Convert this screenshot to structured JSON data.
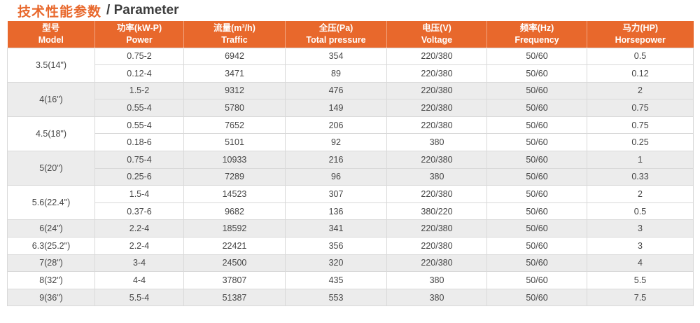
{
  "title": {
    "zh": "技术性能参数",
    "en": "/ Parameter"
  },
  "colors": {
    "accent": "#e8682c",
    "header_text": "#ffffff",
    "row_alt_bg": "#ececec",
    "grid_border": "#d9d9d9",
    "body_text": "#454545",
    "title_en_text": "#3d3d3d"
  },
  "table": {
    "columns": [
      {
        "zh": "型号",
        "en": "Model"
      },
      {
        "zh": "功率(kW-P)",
        "en": "Power"
      },
      {
        "zh": "流量(m³/h)",
        "en": "Traffic"
      },
      {
        "zh": "全压(Pa)",
        "en": "Total pressure"
      },
      {
        "zh": "电压(V)",
        "en": "Voltage"
      },
      {
        "zh": "频率(Hz)",
        "en": "Frequency"
      },
      {
        "zh": "马力(HP)",
        "en": "Horsepower"
      }
    ],
    "groups": [
      {
        "model": "3.5(14\")",
        "rows": [
          [
            "0.75-2",
            "6942",
            "354",
            "220/380",
            "50/60",
            "0.5"
          ],
          [
            "0.12-4",
            "3471",
            "89",
            "220/380",
            "50/60",
            "0.12"
          ]
        ]
      },
      {
        "model": "4(16\")",
        "rows": [
          [
            "1.5-2",
            "9312",
            "476",
            "220/380",
            "50/60",
            "2"
          ],
          [
            "0.55-4",
            "5780",
            "149",
            "220/380",
            "50/60",
            "0.75"
          ]
        ]
      },
      {
        "model": "4.5(18\")",
        "rows": [
          [
            "0.55-4",
            "7652",
            "206",
            "220/380",
            "50/60",
            "0.75"
          ],
          [
            "0.18-6",
            "5101",
            "92",
            "380",
            "50/60",
            "0.25"
          ]
        ]
      },
      {
        "model": "5(20\")",
        "rows": [
          [
            "0.75-4",
            "10933",
            "216",
            "220/380",
            "50/60",
            "1"
          ],
          [
            "0.25-6",
            "7289",
            "96",
            "380",
            "50/60",
            "0.33"
          ]
        ]
      },
      {
        "model": "5.6(22.4\")",
        "rows": [
          [
            "1.5-4",
            "14523",
            "307",
            "220/380",
            "50/60",
            "2"
          ],
          [
            "0.37-6",
            "9682",
            "136",
            "380/220",
            "50/60",
            "0.5"
          ]
        ]
      },
      {
        "model": "6(24\")",
        "rows": [
          [
            "2.2-4",
            "18592",
            "341",
            "220/380",
            "50/60",
            "3"
          ]
        ]
      },
      {
        "model": "6.3(25.2\")",
        "rows": [
          [
            "2.2-4",
            "22421",
            "356",
            "220/380",
            "50/60",
            "3"
          ]
        ]
      },
      {
        "model": "7(28\")",
        "rows": [
          [
            "3-4",
            "24500",
            "320",
            "220/380",
            "50/60",
            "4"
          ]
        ]
      },
      {
        "model": "8(32\")",
        "rows": [
          [
            "4-4",
            "37807",
            "435",
            "380",
            "50/60",
            "5.5"
          ]
        ]
      },
      {
        "model": "9(36\")",
        "rows": [
          [
            "5.5-4",
            "51387",
            "553",
            "380",
            "50/60",
            "7.5"
          ]
        ]
      }
    ]
  }
}
